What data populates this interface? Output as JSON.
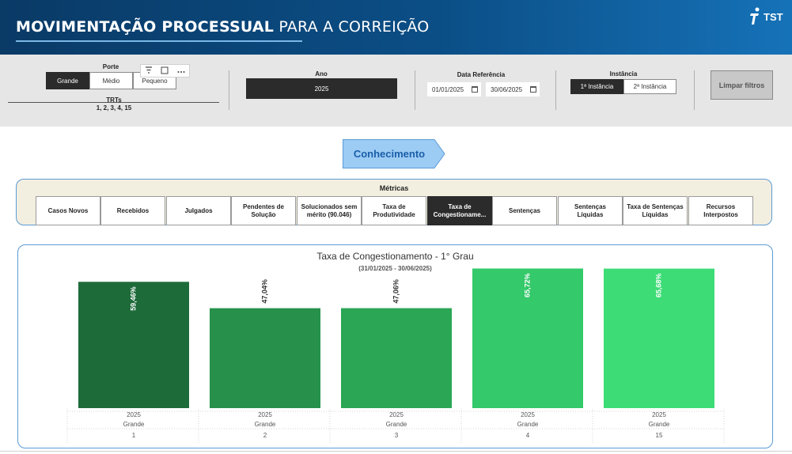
{
  "header": {
    "title_bold": "MOVIMENTAÇÃO PROCESSUAL",
    "title_light": " PARA A CORREIÇÃO",
    "logo_text": "TST"
  },
  "filters": {
    "porte": {
      "label": "Porte",
      "options": [
        {
          "label": "Grande",
          "active": true
        },
        {
          "label": "Médio",
          "active": false
        },
        {
          "label": "Pequeno",
          "active": false
        }
      ]
    },
    "trts": {
      "label": "TRTs",
      "value": "1, 2, 3, 4, 15"
    },
    "toolbar_icons": [
      "filter-icon",
      "focus-icon",
      "more-options-icon"
    ],
    "ano": {
      "label": "Ano",
      "value": "2025"
    },
    "data_referencia": {
      "label": "Data Referência",
      "start": "01/01/2025",
      "end": "30/06/2025"
    },
    "instancia": {
      "label": "Instância",
      "options": [
        {
          "label": "1ª Instância",
          "active": true
        },
        {
          "label": "2ª Instância",
          "active": false
        }
      ]
    },
    "clear_label": "Limpar filtros"
  },
  "section_label": "Conhecimento",
  "metrics": {
    "title": "Métricas",
    "items": [
      {
        "label": "Casos Novos",
        "active": false
      },
      {
        "label": "Recebidos",
        "active": false
      },
      {
        "label": "Julgados",
        "active": false
      },
      {
        "label": "Pendentes de Solução",
        "active": false
      },
      {
        "label": "Solucionados sem mérito (90.046)",
        "active": false
      },
      {
        "label": "Taxa de Produtividade",
        "active": false
      },
      {
        "label": "Taxa de Congestioname...",
        "active": true
      },
      {
        "label": "Sentenças",
        "active": false
      },
      {
        "label": "Sentenças Líquidas",
        "active": false
      },
      {
        "label": "Taxa de Sentenças Líquidas",
        "active": false
      },
      {
        "label": "Recursos Interpostos",
        "active": false
      }
    ]
  },
  "chart_data": {
    "type": "bar",
    "title": "Taxa de Congestionamento - 1° Grau",
    "subtitle": "(31/01/2025 - 30/06/2025)",
    "categories": [
      {
        "year": "2025",
        "porte": "Grande",
        "trt": "1"
      },
      {
        "year": "2025",
        "porte": "Grande",
        "trt": "2"
      },
      {
        "year": "2025",
        "porte": "Grande",
        "trt": "3"
      },
      {
        "year": "2025",
        "porte": "Grande",
        "trt": "4"
      },
      {
        "year": "2025",
        "porte": "Grande",
        "trt": "15"
      }
    ],
    "values": [
      59.46,
      47.04,
      47.06,
      65.72,
      65.68
    ],
    "labels": [
      "59,46%",
      "47,04%",
      "47,06%",
      "65,72%",
      "65,68%"
    ],
    "colors": [
      "#1e6b3a",
      "#27914b",
      "#2aa655",
      "#34c96a",
      "#3ddc76"
    ],
    "ylim": [
      0,
      70
    ],
    "grid": false
  }
}
